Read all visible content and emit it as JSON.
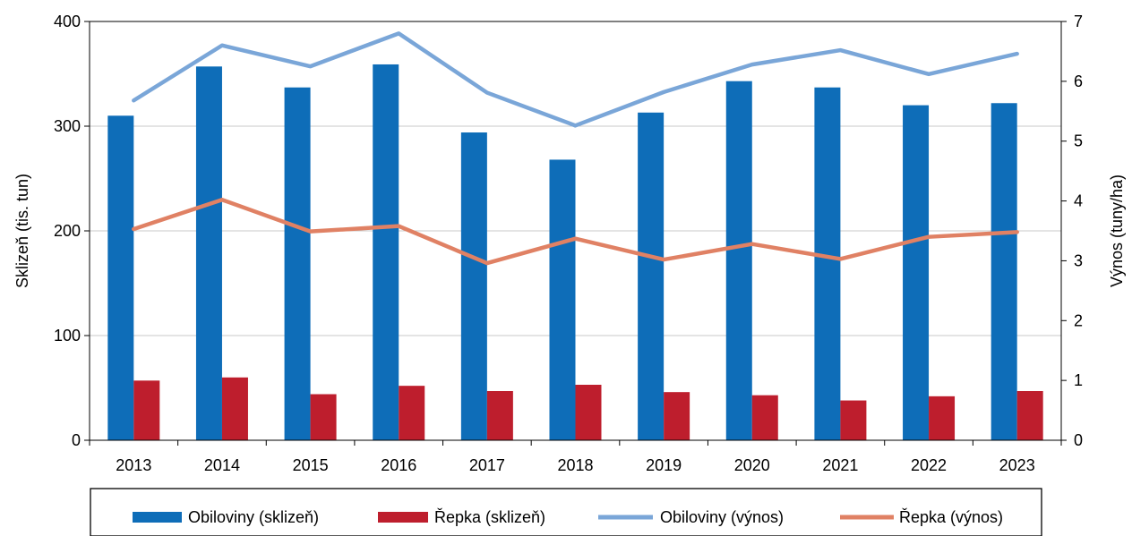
{
  "chart_data": {
    "type": "bar",
    "categories": [
      "2013",
      "2014",
      "2015",
      "2016",
      "2017",
      "2018",
      "2019",
      "2020",
      "2021",
      "2022",
      "2023"
    ],
    "series": [
      {
        "name": "Obiloviny (sklizeň)",
        "kind": "bar",
        "axis": "left",
        "color": "#0E6DB8",
        "values": [
          310,
          357,
          337,
          359,
          294,
          268,
          313,
          343,
          337,
          320,
          322
        ]
      },
      {
        "name": "Řepka (sklizeň)",
        "kind": "bar",
        "axis": "left",
        "color": "#BE1E2D",
        "values": [
          57,
          60,
          44,
          52,
          47,
          53,
          46,
          43,
          38,
          42,
          47
        ]
      },
      {
        "name": "Obiloviny (výnos)",
        "kind": "line",
        "axis": "right",
        "color": "#7AA6D8",
        "values": [
          5.68,
          6.6,
          6.25,
          6.8,
          5.81,
          5.26,
          5.82,
          6.28,
          6.52,
          6.12,
          6.46
        ]
      },
      {
        "name": "Řepka (výnos)",
        "kind": "line",
        "axis": "right",
        "color": "#E08164",
        "values": [
          3.53,
          4.02,
          3.49,
          3.58,
          2.96,
          3.37,
          3.02,
          3.28,
          3.03,
          3.4,
          3.48
        ]
      }
    ],
    "ylabel": "Sklizeň (tis. tun)",
    "y2label": "Výnos (tuny/ha)",
    "ylim": [
      0,
      400
    ],
    "y2lim": [
      0,
      7
    ],
    "yticks": [
      "0",
      "100",
      "200",
      "300",
      "400"
    ],
    "y2ticks": [
      "0",
      "1",
      "2",
      "3",
      "4",
      "5",
      "6",
      "7"
    ],
    "grid": true,
    "legend_position": "bottom"
  }
}
